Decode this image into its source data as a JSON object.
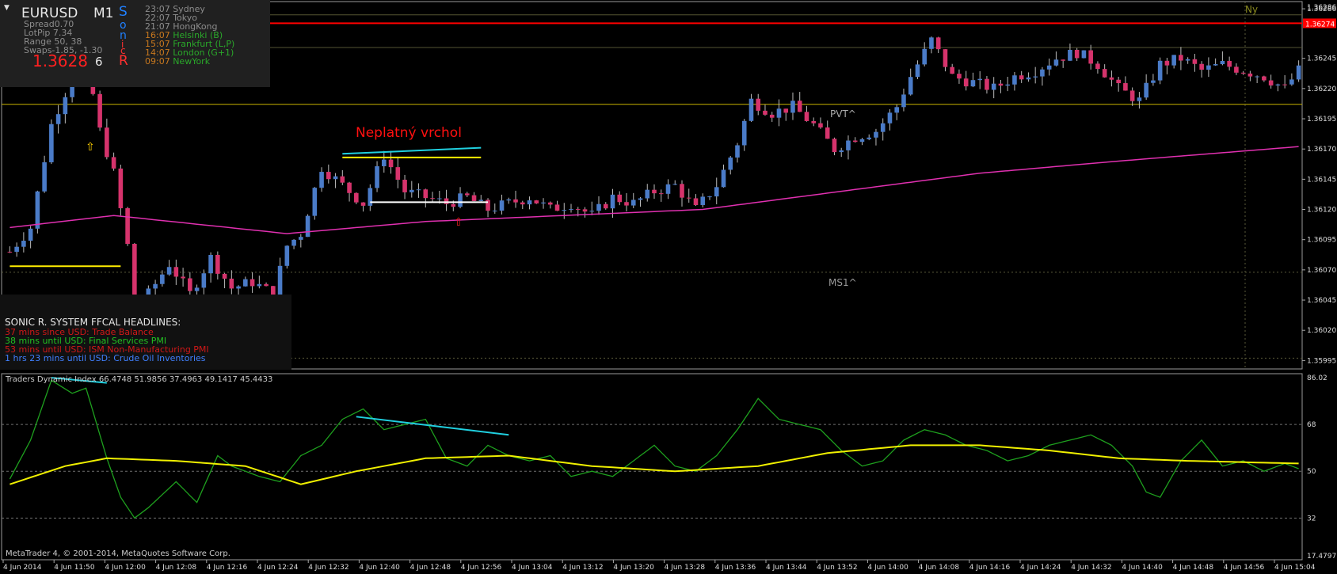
{
  "info": {
    "symbol": "EURUSD",
    "timeframe": "M1",
    "spread": "Spread0.70",
    "lotpip": "LotPip 7.34",
    "range": "Range 50, 38",
    "swaps": "Swaps-1.85, -1.30",
    "price": "1.3628",
    "price_digit": "6",
    "sonic_letters": [
      "S",
      "o",
      "n",
      "i",
      "c",
      "R"
    ],
    "sessions": [
      {
        "time": "23:07",
        "name": "Sydney",
        "color": "#8c8c8c"
      },
      {
        "time": "22:07",
        "name": "Tokyo",
        "color": "#8c8c8c"
      },
      {
        "time": "21:07",
        "name": "HongKong",
        "color": "#8c8c8c"
      },
      {
        "time": "16:07",
        "name": "Helsinki  (B)",
        "color": "#c8781e"
      },
      {
        "time": "15:07",
        "name": "Frankfurt  (L,P)",
        "color": "#c8781e"
      },
      {
        "time": "14:07",
        "name": "London  (G+1)",
        "color": "#c8781e"
      },
      {
        "time": "09:07",
        "name": "NewYork",
        "color": "#c8781e"
      }
    ]
  },
  "news": {
    "title": "SONIC R. SYSTEM  FFCAL HEADLINES:",
    "items": [
      {
        "text": "37 mins since USD: Trade Balance",
        "color": "#d01818"
      },
      {
        "text": "38 mins until USD: Final Services PMI",
        "color": "#22c022"
      },
      {
        "text": "53 mins until USD: ISM Non-Manufacturing PMI",
        "color": "#d01818"
      },
      {
        "text": "1 hrs 23 mins until USD: Crude Oil Inventories",
        "color": "#4080ff"
      }
    ]
  },
  "annotation": {
    "text": "Neplatný vrchol",
    "color": "#ff1010"
  },
  "labels": {
    "pvt": "PVT^",
    "ms1": "MS1^",
    "ny": "Ny",
    "red_level": "1.36274",
    "top_price": "1.36286"
  },
  "indicator_header": "Traders Dynamic Index 66.4748 51.9856 37.4963 49.1417 45.4433",
  "copyright": "MetaTrader 4, © 2001-2014, MetaQuotes Software Corp.",
  "colors": {
    "bull": "#4a7bc8",
    "bear": "#d6336c",
    "ma": "#e030b0",
    "red_line": "#ff0000",
    "yellow": "#ffee00",
    "cyan": "#20d0e0",
    "tdi_green": "#1ea01e",
    "tdi_yellow": "#f0f000"
  },
  "chart_data": [
    {
      "type": "candlestick",
      "symbol": "EURUSD",
      "timeframe": "M1",
      "y_ticks": [
        1.36286,
        1.36245,
        1.3622,
        1.36195,
        1.3617,
        1.36145,
        1.3612,
        1.36095,
        1.3607,
        1.36045,
        1.3602,
        1.35995
      ],
      "ylim": [
        1.3599,
        1.3629
      ],
      "x_ticks": [
        "4 Jun 2014",
        "4 Jun 11:50",
        "4 Jun 12:00",
        "4 Jun 12:08",
        "4 Jun 12:16",
        "4 Jun 12:24",
        "4 Jun 12:32",
        "4 Jun 12:40",
        "4 Jun 12:48",
        "4 Jun 12:56",
        "4 Jun 13:04",
        "4 Jun 13:12",
        "4 Jun 13:20",
        "4 Jun 13:28",
        "4 Jun 13:36",
        "4 Jun 13:44",
        "4 Jun 13:52",
        "4 Jun 14:00",
        "4 Jun 14:08",
        "4 Jun 14:16",
        "4 Jun 14:24",
        "4 Jun 14:32",
        "4 Jun 14:40",
        "4 Jun 14:48",
        "4 Jun 14:56",
        "4 Jun 15:04"
      ],
      "levels": {
        "red": 1.36274,
        "yellow_upper": 1.36207,
        "olive_top": 1.36281,
        "olive_mid": 1.36254,
        "dotted_ms1": 1.36068,
        "dotted_low": 1.35997
      },
      "close_anchors": [
        [
          0,
          1.36085
        ],
        [
          3,
          1.36105
        ],
        [
          6,
          1.3619
        ],
        [
          9,
          1.3623
        ],
        [
          10,
          1.36245
        ],
        [
          12,
          1.36215
        ],
        [
          13,
          1.36185
        ],
        [
          15,
          1.3615
        ],
        [
          17,
          1.3609
        ],
        [
          18,
          1.3604
        ],
        [
          20,
          1.3605
        ],
        [
          23,
          1.36075
        ],
        [
          26,
          1.3605
        ],
        [
          29,
          1.3608
        ],
        [
          32,
          1.36055
        ],
        [
          35,
          1.3606
        ],
        [
          38,
          1.3605
        ],
        [
          40,
          1.3609
        ],
        [
          42,
          1.361
        ],
        [
          45,
          1.36155
        ],
        [
          48,
          1.3614
        ],
        [
          51,
          1.36125
        ],
        [
          54,
          1.36165
        ],
        [
          57,
          1.36135
        ],
        [
          60,
          1.3613
        ],
        [
          63,
          1.36125
        ],
        [
          66,
          1.3613
        ],
        [
          69,
          1.3612
        ],
        [
          72,
          1.36125
        ],
        [
          75,
          1.3613
        ],
        [
          78,
          1.3612
        ],
        [
          81,
          1.36125
        ],
        [
          84,
          1.36115
        ],
        [
          87,
          1.3613
        ],
        [
          90,
          1.36125
        ],
        [
          93,
          1.36135
        ],
        [
          96,
          1.3614
        ],
        [
          99,
          1.3612
        ],
        [
          102,
          1.3614
        ],
        [
          105,
          1.36175
        ],
        [
          107,
          1.3621
        ],
        [
          110,
          1.362
        ],
        [
          113,
          1.36205
        ],
        [
          116,
          1.3619
        ],
        [
          119,
          1.3617
        ],
        [
          122,
          1.3618
        ],
        [
          125,
          1.36185
        ],
        [
          128,
          1.36205
        ],
        [
          130,
          1.3623
        ],
        [
          133,
          1.3626
        ],
        [
          136,
          1.3623
        ],
        [
          139,
          1.36225
        ],
        [
          142,
          1.3622
        ],
        [
          145,
          1.3623
        ],
        [
          148,
          1.36235
        ],
        [
          151,
          1.36245
        ],
        [
          154,
          1.3625
        ],
        [
          157,
          1.3624
        ],
        [
          160,
          1.3622
        ],
        [
          163,
          1.3621
        ],
        [
          166,
          1.3624
        ],
        [
          169,
          1.36245
        ],
        [
          172,
          1.36235
        ],
        [
          175,
          1.3624
        ],
        [
          178,
          1.36235
        ],
        [
          181,
          1.3623
        ],
        [
          184,
          1.3622
        ],
        [
          186,
          1.36235
        ]
      ],
      "ma_line": [
        [
          0,
          1.36105
        ],
        [
          15,
          1.36115
        ],
        [
          40,
          1.361
        ],
        [
          60,
          1.3611
        ],
        [
          80,
          1.36115
        ],
        [
          100,
          1.3612
        ],
        [
          120,
          1.36135
        ],
        [
          140,
          1.3615
        ],
        [
          160,
          1.3616
        ],
        [
          186,
          1.36172
        ]
      ],
      "trendlines": [
        {
          "color": "cyan",
          "points": [
            [
              48,
              1.36166
            ],
            [
              68,
              1.36171
            ]
          ]
        },
        {
          "color": "yellow",
          "points": [
            [
              48,
              1.36163
            ],
            [
              68,
              1.36163
            ]
          ]
        },
        {
          "color": "white",
          "points": [
            [
              52,
              1.36126
            ],
            [
              69,
              1.36126
            ]
          ]
        },
        {
          "color": "yellow",
          "points": [
            [
              0,
              1.36073
            ],
            [
              16,
              1.36073
            ]
          ]
        }
      ]
    },
    {
      "type": "line",
      "title": "Traders Dynamic Index",
      "y_ticks": [
        86.02,
        68,
        50,
        32,
        17.4797
      ],
      "ylim": [
        17.4797,
        86.02
      ],
      "levels": [
        68,
        50,
        32
      ],
      "series": [
        {
          "name": "",
          "color": "tdi_green",
          "anchors": [
            [
              0,
              47
            ],
            [
              3,
              62
            ],
            [
              6,
              85
            ],
            [
              9,
              80
            ],
            [
              11,
              82
            ],
            [
              14,
              55
            ],
            [
              16,
              40
            ],
            [
              18,
              32
            ],
            [
              20,
              36
            ],
            [
              24,
              46
            ],
            [
              27,
              38
            ],
            [
              30,
              56
            ],
            [
              32,
              52
            ],
            [
              36,
              48
            ],
            [
              39,
              46
            ],
            [
              42,
              56
            ],
            [
              45,
              60
            ],
            [
              48,
              70
            ],
            [
              51,
              74
            ],
            [
              54,
              66
            ],
            [
              57,
              68
            ],
            [
              60,
              70
            ],
            [
              63,
              55
            ],
            [
              66,
              52
            ],
            [
              69,
              60
            ],
            [
              72,
              56
            ],
            [
              75,
              54
            ],
            [
              78,
              56
            ],
            [
              81,
              48
            ],
            [
              84,
              50
            ],
            [
              87,
              48
            ],
            [
              90,
              54
            ],
            [
              93,
              60
            ],
            [
              96,
              52
            ],
            [
              99,
              50
            ],
            [
              102,
              56
            ],
            [
              105,
              66
            ],
            [
              108,
              78
            ],
            [
              111,
              70
            ],
            [
              114,
              68
            ],
            [
              117,
              66
            ],
            [
              120,
              58
            ],
            [
              123,
              52
            ],
            [
              126,
              54
            ],
            [
              129,
              62
            ],
            [
              132,
              66
            ],
            [
              135,
              64
            ],
            [
              138,
              60
            ],
            [
              141,
              58
            ],
            [
              144,
              54
            ],
            [
              147,
              56
            ],
            [
              150,
              60
            ],
            [
              153,
              62
            ],
            [
              156,
              64
            ],
            [
              159,
              60
            ],
            [
              162,
              52
            ],
            [
              164,
              42
            ],
            [
              166,
              40
            ],
            [
              169,
              54
            ],
            [
              172,
              62
            ],
            [
              175,
              52
            ],
            [
              178,
              54
            ],
            [
              181,
              50
            ],
            [
              184,
              53
            ],
            [
              186,
              51
            ]
          ]
        },
        {
          "name": "",
          "color": "tdi_yellow",
          "anchors": [
            [
              0,
              45
            ],
            [
              8,
              52
            ],
            [
              14,
              55
            ],
            [
              24,
              54
            ],
            [
              34,
              52
            ],
            [
              42,
              45
            ],
            [
              50,
              50
            ],
            [
              60,
              55
            ],
            [
              72,
              56
            ],
            [
              84,
              52
            ],
            [
              96,
              50
            ],
            [
              108,
              52
            ],
            [
              118,
              57
            ],
            [
              130,
              60
            ],
            [
              140,
              60
            ],
            [
              150,
              58
            ],
            [
              160,
              55
            ],
            [
              170,
              54
            ],
            [
              186,
              53
            ]
          ]
        }
      ],
      "trendlines": [
        {
          "color": "cyan",
          "points": [
            [
              6,
              86
            ],
            [
              14,
              84
            ]
          ]
        },
        {
          "color": "cyan",
          "points": [
            [
              50,
              71
            ],
            [
              72,
              64
            ]
          ]
        }
      ]
    }
  ]
}
